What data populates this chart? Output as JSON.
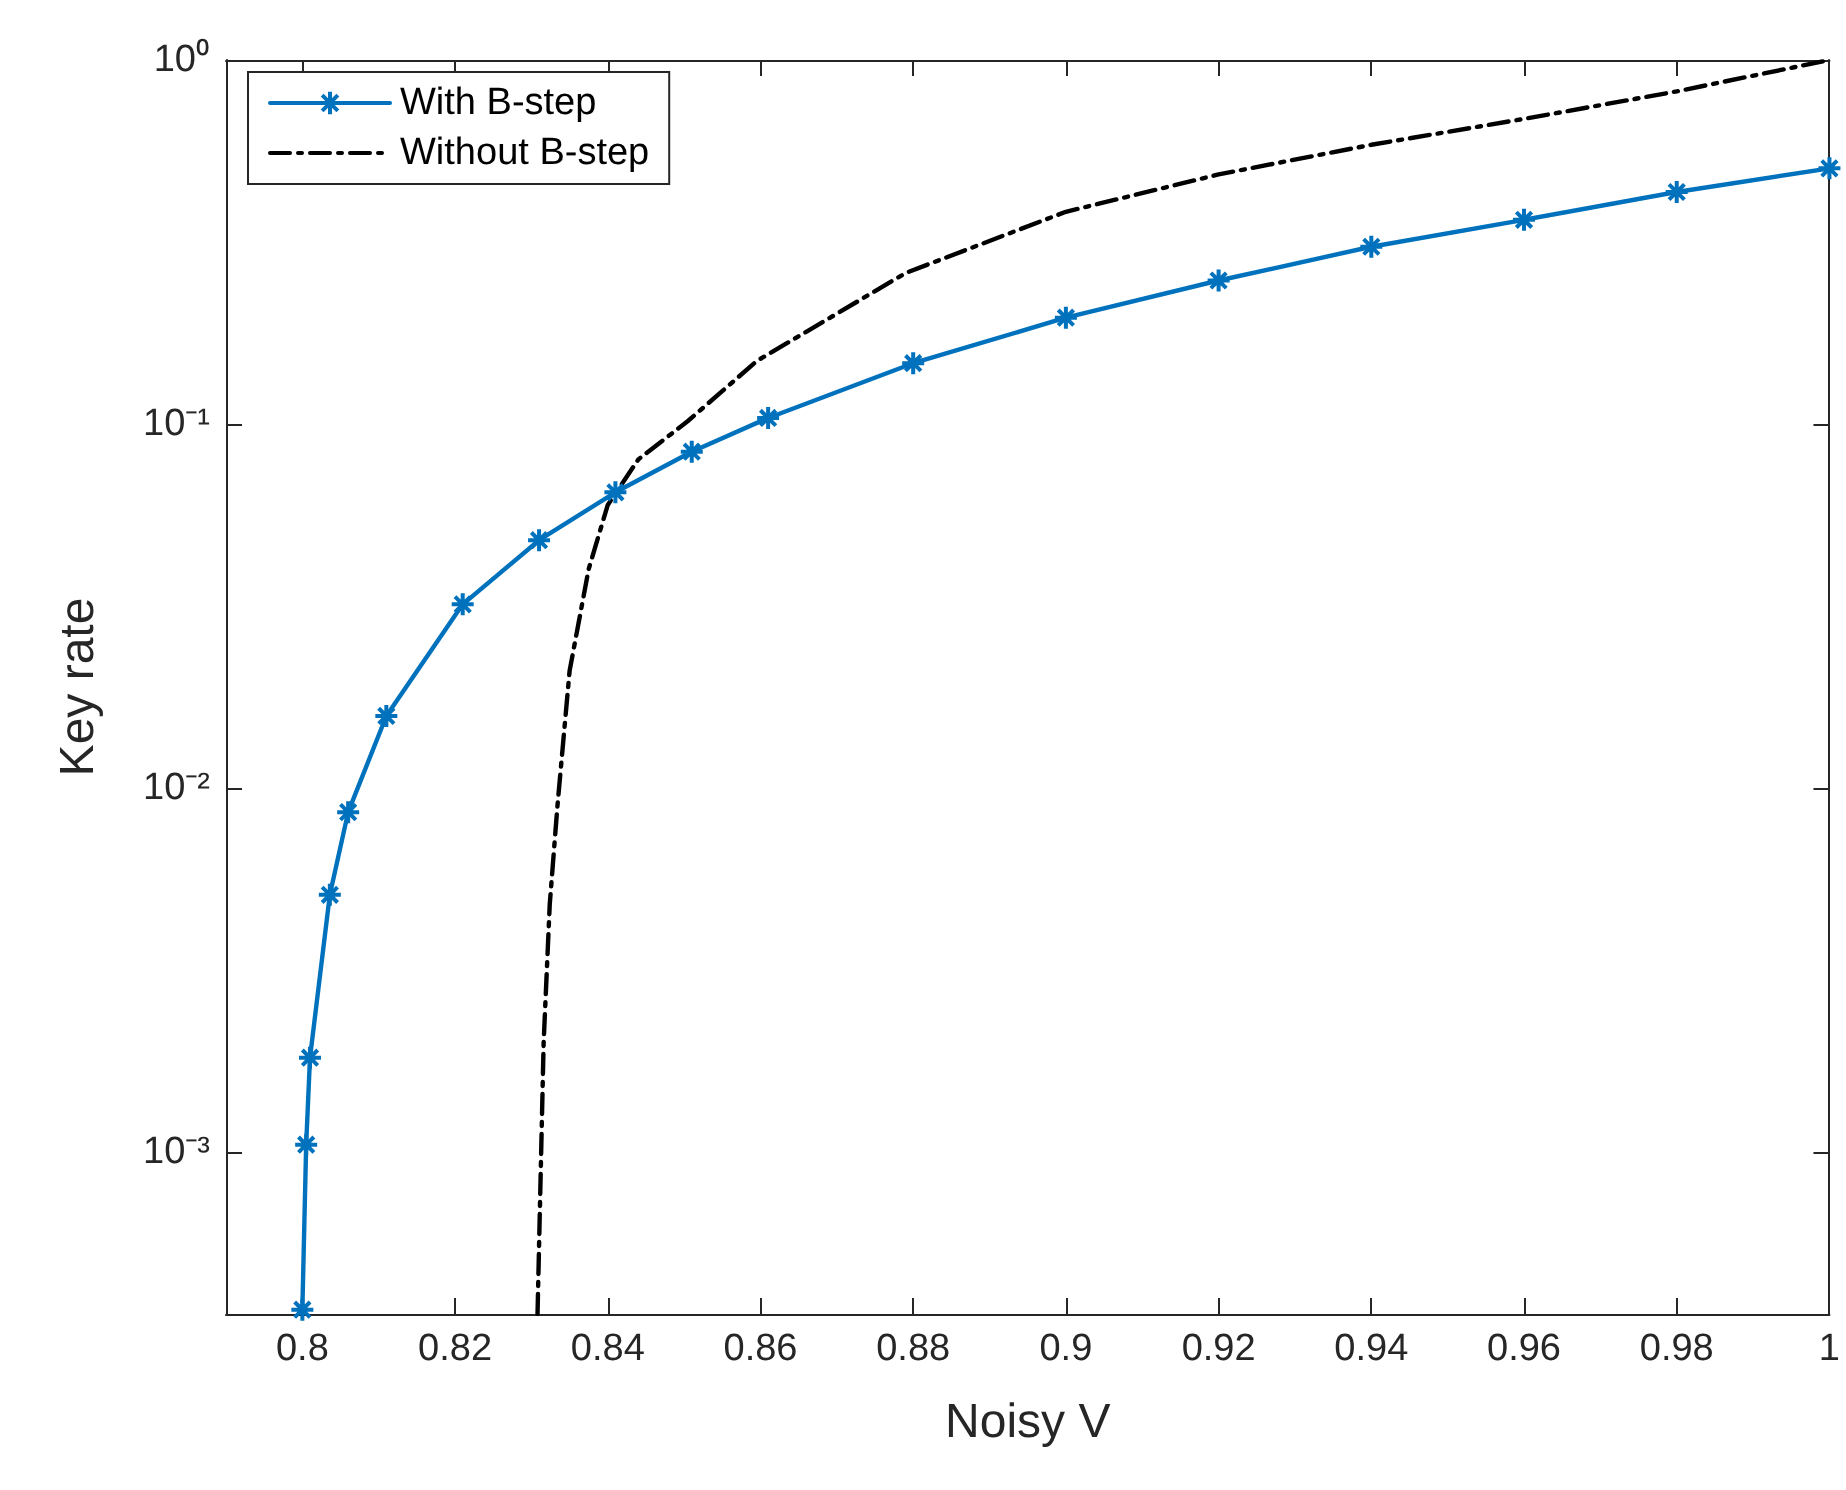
{
  "chart_data": {
    "type": "line",
    "xlabel": "Noisy V",
    "ylabel": "Key rate",
    "log": "y",
    "grid": false,
    "legend": "top left",
    "xlim": [
      0.79,
      1
    ],
    "xticks": [
      0.8,
      0.82,
      0.84,
      0.86,
      0.88,
      0.9,
      0.92,
      0.94,
      0.96,
      0.98,
      1
    ],
    "ylim": [
      0.00036,
      1
    ],
    "yticks": [
      {
        "value": 0.001,
        "label": "10⁻³"
      },
      {
        "value": 0.01,
        "label": "10⁻²"
      },
      {
        "value": 0.1,
        "label": "10⁻¹"
      },
      {
        "value": 1,
        "label": "10⁰"
      }
    ],
    "series": [
      {
        "name": "With B-step",
        "color": "#0072bd",
        "marker": "cross",
        "line_style": "solid",
        "x": [
          0.8,
          0.8005,
          0.801,
          0.8036,
          0.806,
          0.811,
          0.821,
          0.831,
          0.841,
          0.851,
          0.861,
          0.88,
          0.9,
          0.92,
          0.94,
          0.96,
          0.98,
          1
        ],
        "values": [
          0.00037,
          0.00105,
          0.00182,
          0.0051,
          0.0086,
          0.0158,
          0.032,
          0.048,
          0.065,
          0.084,
          0.104,
          0.147,
          0.196,
          0.248,
          0.307,
          0.364,
          0.434,
          0.504
        ]
      },
      {
        "name": "Without B-step",
        "color": "#000000",
        "marker": "none",
        "line_style": "dashed",
        "x": [
          0.8308,
          0.8316,
          0.8324,
          0.8334,
          0.835,
          0.8375,
          0.84,
          0.844,
          0.8505,
          0.8595,
          0.879,
          0.9,
          0.92,
          0.94,
          0.96,
          0.98,
          1
        ],
        "values": [
          0.00036,
          0.002,
          0.0048,
          0.0089,
          0.021,
          0.04,
          0.06,
          0.08,
          0.102,
          0.149,
          0.26,
          0.383,
          0.485,
          0.585,
          0.689,
          0.82,
          1
        ]
      }
    ]
  }
}
